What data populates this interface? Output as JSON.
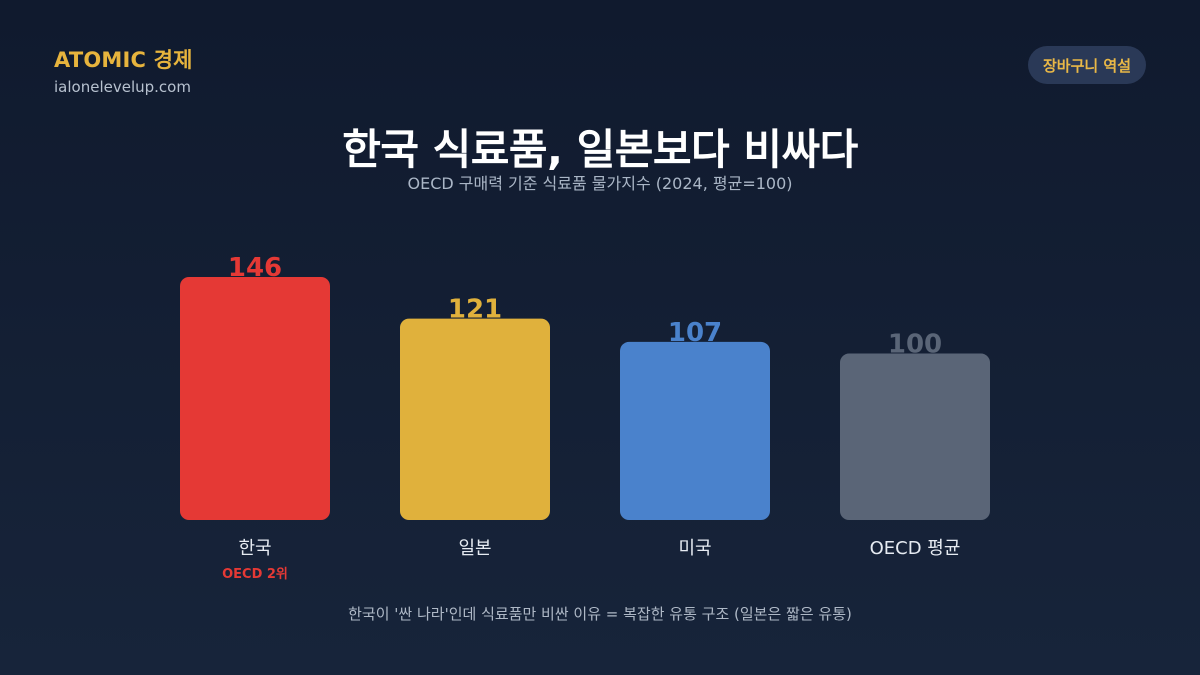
{
  "brand": "ATOMIC 경제",
  "site": "ialonelevelup.com",
  "badge": "장바구니 역설",
  "title": "한국 식료품, 일본보다 비싸다",
  "subtitle": "OECD 구매력 기준 식료품 물가지수 (2024, 평균=100)",
  "footnote": "한국이 '싼 나라'인데 식료품만 비싼 이유 = 복잡한 유통 구조 (일본은 짧은 유통)",
  "colors": {
    "korea": "#e53935",
    "japan": "#e0b13c",
    "usa": "#4a82cc",
    "oecd": "#5a6577",
    "brand": "#e7b43d",
    "badge_bg": "#2a3957"
  },
  "chart_data": {
    "type": "bar",
    "categories": [
      "한국",
      "일본",
      "미국",
      "OECD 평균"
    ],
    "values": [
      146,
      121,
      107,
      100
    ],
    "bar_colors": [
      "#e53935",
      "#e0b13c",
      "#4a82cc",
      "#5a6577"
    ],
    "sublabels": [
      "OECD 2위",
      "",
      "",
      ""
    ],
    "value_labels": [
      "146",
      "121",
      "107",
      "100"
    ],
    "title": "한국 식료품, 일본보다 비싸다",
    "ylim": [
      0,
      146
    ],
    "grid": false
  }
}
